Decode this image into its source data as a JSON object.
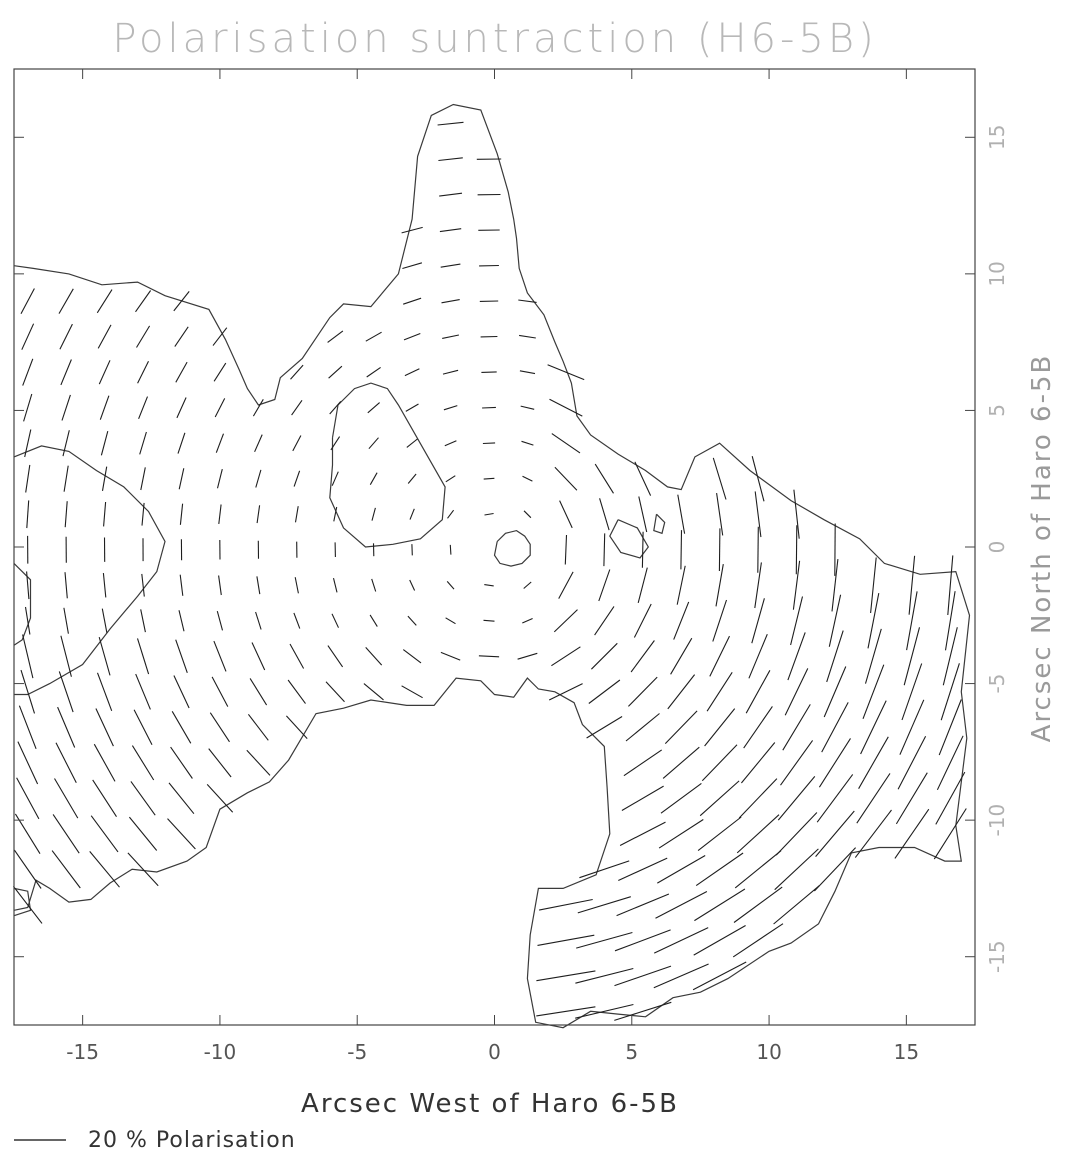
{
  "chart_data": {
    "type": "scatter",
    "title": "Polarisation suntraction (H6-5B)",
    "xlabel": "Arcsec West of Haro 6-5B",
    "ylabel": "Arcsec North of Haro 6-5B",
    "xlim": [
      -17.5,
      17.5
    ],
    "ylim": [
      -17.5,
      17.5
    ],
    "x_ticks": [
      -15,
      -10,
      -5,
      0,
      5,
      10,
      15
    ],
    "y_ticks": [
      -15,
      -10,
      -5,
      0,
      5,
      10,
      15
    ],
    "x_tick_labels": [
      "-15",
      "-10",
      "-5",
      "0",
      "5",
      "10",
      "15"
    ],
    "y_tick_labels": [
      "-15",
      "-10",
      "-5",
      "0",
      "5",
      "10",
      "15"
    ],
    "grid": false,
    "legend": "bottom-left",
    "vector_scale": {
      "percent": 20,
      "label": "20 % Polarisation"
    },
    "source_position": [
      0,
      0
    ],
    "contours": [
      {
        "name": "outer-north",
        "points": [
          [
            -17.5,
            10.3
          ],
          [
            -16.8,
            10.2
          ],
          [
            -15.5,
            10.0
          ],
          [
            -14.3,
            9.6
          ],
          [
            -13.0,
            9.7
          ],
          [
            -12.0,
            9.2
          ],
          [
            -10.4,
            8.7
          ],
          [
            -9.8,
            7.6
          ],
          [
            -9.3,
            6.5
          ],
          [
            -9.0,
            5.8
          ],
          [
            -8.6,
            5.2
          ],
          [
            -8.0,
            5.4
          ],
          [
            -7.8,
            6.2
          ],
          [
            -7.0,
            6.9
          ],
          [
            -6.0,
            8.4
          ],
          [
            -5.5,
            8.9
          ],
          [
            -4.5,
            8.8
          ],
          [
            -3.5,
            10.0
          ],
          [
            -3.0,
            12.0
          ],
          [
            -2.8,
            14.3
          ],
          [
            -2.3,
            15.8
          ],
          [
            -1.5,
            16.2
          ],
          [
            -0.5,
            16.0
          ],
          [
            0.1,
            14.4
          ],
          [
            0.5,
            13.0
          ],
          [
            0.7,
            12.0
          ],
          [
            0.8,
            11.3
          ],
          [
            0.9,
            10.2
          ],
          [
            1.2,
            9.3
          ],
          [
            1.8,
            8.5
          ],
          [
            2.2,
            7.5
          ],
          [
            2.5,
            6.8
          ],
          [
            2.8,
            6.0
          ],
          [
            3.0,
            4.8
          ],
          [
            3.5,
            4.1
          ],
          [
            4.5,
            3.4
          ],
          [
            5.5,
            2.8
          ],
          [
            6.3,
            2.2
          ],
          [
            6.8,
            2.1
          ],
          [
            7.3,
            3.3
          ],
          [
            8.2,
            3.8
          ],
          [
            9.3,
            2.8
          ],
          [
            10.8,
            1.7
          ],
          [
            12.0,
            1.0
          ],
          [
            13.3,
            0.3
          ],
          [
            14.2,
            -0.6
          ],
          [
            15.5,
            -1.0
          ],
          [
            16.8,
            -0.9
          ],
          [
            17.3,
            -2.5
          ],
          [
            17.0,
            -5.3
          ],
          [
            17.2,
            -7.0
          ],
          [
            16.8,
            -10.2
          ],
          [
            17.0,
            -11.5
          ],
          [
            16.4,
            -11.5
          ],
          [
            15.3,
            -11.0
          ],
          [
            14.0,
            -11.0
          ],
          [
            13.0,
            -11.2
          ],
          [
            12.4,
            -12.6
          ],
          [
            11.8,
            -13.8
          ],
          [
            10.8,
            -14.5
          ],
          [
            10.0,
            -14.8
          ],
          [
            8.5,
            -15.8
          ],
          [
            7.5,
            -16.3
          ],
          [
            6.5,
            -16.5
          ],
          [
            5.5,
            -17.2
          ],
          [
            4.5,
            -17.1
          ],
          [
            3.5,
            -17.0
          ],
          [
            2.5,
            -17.6
          ],
          [
            1.5,
            -17.4
          ],
          [
            1.2,
            -15.8
          ],
          [
            1.3,
            -14.2
          ],
          [
            1.6,
            -12.5
          ],
          [
            2.5,
            -12.5
          ],
          [
            3.7,
            -12.0
          ],
          [
            4.2,
            -10.5
          ],
          [
            4.1,
            -8.8
          ],
          [
            4.0,
            -7.3
          ],
          [
            3.2,
            -6.5
          ],
          [
            2.9,
            -5.7
          ],
          [
            2.2,
            -5.3
          ],
          [
            1.6,
            -5.2
          ],
          [
            1.2,
            -4.8
          ],
          [
            0.7,
            -5.5
          ],
          [
            0.0,
            -5.4
          ],
          [
            -0.5,
            -4.9
          ],
          [
            -1.4,
            -4.8
          ],
          [
            -2.2,
            -5.8
          ],
          [
            -3.2,
            -5.8
          ],
          [
            -4.5,
            -5.6
          ],
          [
            -5.5,
            -5.9
          ],
          [
            -6.5,
            -6.1
          ],
          [
            -7.5,
            -7.8
          ],
          [
            -8.2,
            -8.6
          ],
          [
            -9.0,
            -9.0
          ],
          [
            -10.0,
            -9.6
          ],
          [
            -10.5,
            -11.0
          ],
          [
            -11.2,
            -11.5
          ],
          [
            -12.3,
            -11.9
          ],
          [
            -13.2,
            -11.8
          ],
          [
            -14.0,
            -12.3
          ],
          [
            -14.7,
            -12.9
          ],
          [
            -15.5,
            -13.0
          ],
          [
            -16.2,
            -12.5
          ],
          [
            -16.7,
            -12.2
          ],
          [
            -17.0,
            -13.2
          ],
          [
            -17.5,
            -13.3
          ]
        ]
      },
      {
        "name": "inner-loop",
        "points": [
          [
            -5.9,
            4.0
          ],
          [
            -5.7,
            5.2
          ],
          [
            -5.1,
            5.8
          ],
          [
            -4.5,
            6.0
          ],
          [
            -3.9,
            5.8
          ],
          [
            -3.5,
            5.2
          ],
          [
            -1.8,
            2.2
          ],
          [
            -1.9,
            1.0
          ],
          [
            -2.7,
            0.3
          ],
          [
            -3.7,
            0.1
          ],
          [
            -4.7,
            0.0
          ],
          [
            -5.5,
            0.7
          ],
          [
            -6.0,
            1.8
          ],
          [
            -5.9,
            3.0
          ],
          [
            -5.9,
            4.0
          ]
        ]
      },
      {
        "name": "west-loop",
        "points": [
          [
            -17.5,
            3.3
          ],
          [
            -16.5,
            3.7
          ],
          [
            -15.5,
            3.5
          ],
          [
            -14.5,
            2.8
          ],
          [
            -13.5,
            2.2
          ],
          [
            -12.6,
            1.3
          ],
          [
            -12.0,
            0.2
          ],
          [
            -12.3,
            -0.9
          ],
          [
            -13.0,
            -1.8
          ],
          [
            -14.0,
            -3.0
          ],
          [
            -15.0,
            -4.3
          ],
          [
            -16.2,
            -5.0
          ],
          [
            -17.0,
            -5.4
          ],
          [
            -17.5,
            -5.4
          ]
        ]
      },
      {
        "name": "west-inner",
        "points": [
          [
            -17.5,
            -0.6
          ],
          [
            -16.9,
            -1.2
          ],
          [
            -16.9,
            -2.6
          ],
          [
            -17.2,
            -3.4
          ],
          [
            -17.5,
            -3.6
          ]
        ]
      },
      {
        "name": "source-circle",
        "points": [
          [
            0.1,
            0.2
          ],
          [
            0.4,
            0.5
          ],
          [
            0.8,
            0.6
          ],
          [
            1.1,
            0.4
          ],
          [
            1.3,
            0.1
          ],
          [
            1.3,
            -0.3
          ],
          [
            1.0,
            -0.6
          ],
          [
            0.6,
            -0.7
          ],
          [
            0.2,
            -0.6
          ],
          [
            0.0,
            -0.3
          ],
          [
            0.1,
            0.2
          ]
        ]
      },
      {
        "name": "blob-east-1",
        "points": [
          [
            4.5,
            1.0
          ],
          [
            5.2,
            0.7
          ],
          [
            5.6,
            0.0
          ],
          [
            5.3,
            -0.4
          ],
          [
            4.6,
            -0.2
          ],
          [
            4.2,
            0.4
          ],
          [
            4.5,
            1.0
          ]
        ]
      },
      {
        "name": "blob-east-2",
        "points": [
          [
            5.9,
            1.2
          ],
          [
            6.2,
            0.9
          ],
          [
            6.1,
            0.5
          ],
          [
            5.8,
            0.6
          ],
          [
            5.9,
            1.2
          ]
        ]
      },
      {
        "name": "sw-corner",
        "points": [
          [
            -17.5,
            -12.5
          ],
          [
            -17.0,
            -12.6
          ],
          [
            -16.9,
            -13.3
          ],
          [
            -17.5,
            -13.5
          ]
        ]
      }
    ]
  }
}
